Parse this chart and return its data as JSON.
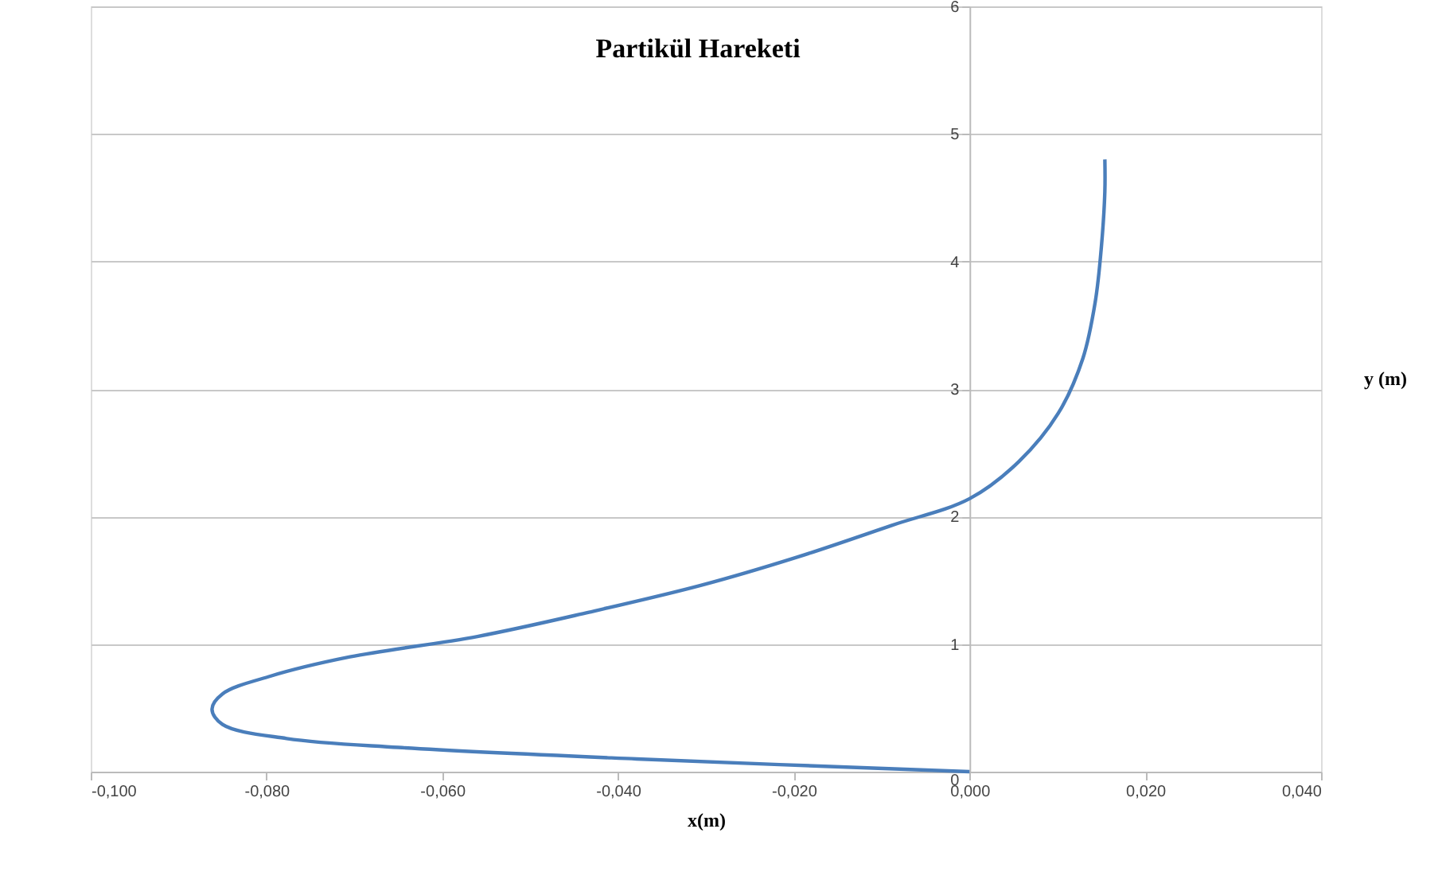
{
  "chart_data": {
    "type": "line",
    "title": "Partikül Hareketi",
    "xlabel": "x(m)",
    "ylabel": "y (m)",
    "xlim": [
      -0.1,
      0.04
    ],
    "ylim": [
      0,
      6
    ],
    "xticks": [
      {
        "value": -0.1,
        "label": "-0,100"
      },
      {
        "value": -0.08,
        "label": "-0,080"
      },
      {
        "value": -0.06,
        "label": "-0,060"
      },
      {
        "value": -0.04,
        "label": "-0,040"
      },
      {
        "value": -0.02,
        "label": "-0,020"
      },
      {
        "value": 0,
        "label": "0,000"
      },
      {
        "value": 0.02,
        "label": "0,020"
      },
      {
        "value": 0.04,
        "label": "0,040"
      }
    ],
    "yticks": [
      0,
      1,
      2,
      3,
      4,
      5,
      6
    ],
    "grid": "y",
    "marker": "none",
    "line_style": "solid",
    "series": [
      {
        "color": "#4a7ebb",
        "x": [
          0,
          -0.0379,
          -0.065,
          -0.0777,
          -0.085,
          -0.0862,
          -0.085,
          -0.0795,
          -0.0705,
          -0.056,
          -0.0433,
          -0.0306,
          -0.0197,
          -0.0089,
          0,
          0.0056,
          0.0101,
          0.0129,
          0.0143,
          0.015,
          0.0154,
          0.0154
        ],
        "values": [
          0,
          0.1,
          0.19,
          0.26,
          0.37,
          0.49,
          0.61,
          0.75,
          0.9,
          1.06,
          1.25,
          1.46,
          1.68,
          1.93,
          2.14,
          2.43,
          2.81,
          3.24,
          3.68,
          4.11,
          4.55,
          4.8
        ]
      }
    ]
  }
}
